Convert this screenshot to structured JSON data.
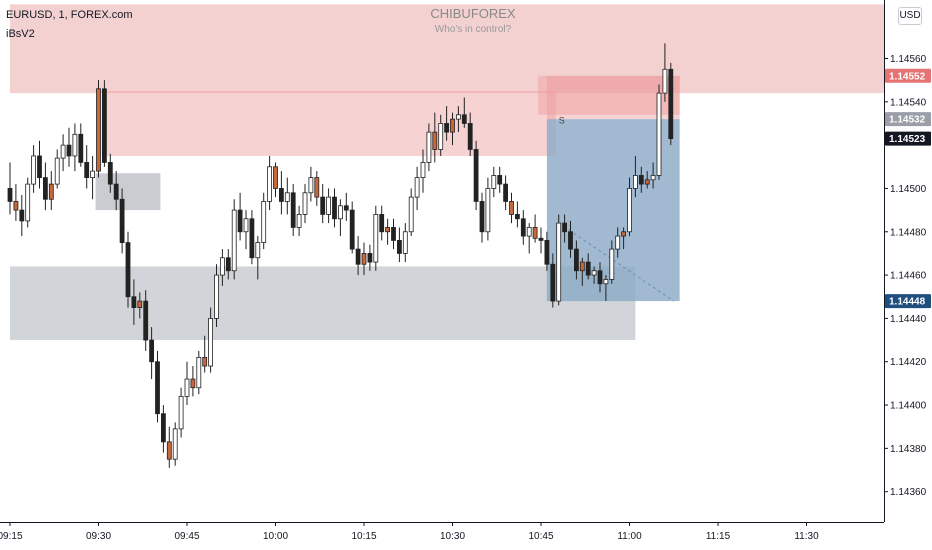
{
  "header": {
    "symbol": "EURUSD, 1, FOREX.com",
    "indicator": "iBsV2"
  },
  "watermark": {
    "title": "CHIBUFOREX",
    "subtitle": "Who's in control?"
  },
  "currency": "USD",
  "colors": {
    "up_body": "#ffffff",
    "down_body": "#222222",
    "accent_orange": "#c8683a",
    "supply_zone": "#f2c9c9",
    "demand_zone": "#c9ccd1",
    "position_blue": "#8aa9c6",
    "badge_red": "#e57373",
    "badge_gray": "#999ea8",
    "badge_black": "#131722",
    "badge_blue": "#1e4f7f"
  },
  "chart_data": {
    "type": "candlestick",
    "ylim": [
      1.14346,
      1.14587
    ],
    "y_ticks": [
      "1.14560",
      "1.14540",
      "1.14500",
      "1.14480",
      "1.14460",
      "1.14440",
      "1.14420",
      "1.14400",
      "1.14380",
      "1.14360"
    ],
    "x_ticks": [
      "09:15",
      "09:30",
      "09:45",
      "10:00",
      "10:15",
      "10:30",
      "10:45",
      "11:00",
      "11:15",
      "11:30"
    ],
    "x_tick_minutes": [
      0,
      15,
      30,
      45,
      60,
      75,
      90,
      105,
      120,
      135
    ],
    "price_badges": [
      {
        "label": "1.14552",
        "value": 1.14552,
        "color": "#e57373"
      },
      {
        "label": "1.14532",
        "value": 1.14532,
        "color": "#999ea8"
      },
      {
        "label": "1.14523",
        "value": 1.14523,
        "color": "#131722"
      },
      {
        "label": "1.14448",
        "value": 1.14448,
        "color": "#1e4f7f"
      }
    ],
    "zones": [
      {
        "kind": "supply",
        "t_start": 0,
        "t_end": 151,
        "low": 1.14544,
        "high": 1.14585,
        "color": "#f2c9c9",
        "opacity": 0.85
      },
      {
        "kind": "supply",
        "t_start": 15.5,
        "t_end": 92.5,
        "low": 1.14515,
        "high": 1.14545,
        "color": "#ee9b9b",
        "opacity": 0.45
      },
      {
        "kind": "supply",
        "t_start": 89.5,
        "t_end": 113.5,
        "low": 1.14534,
        "high": 1.14552,
        "color": "#ee9b9b",
        "opacity": 0.45
      },
      {
        "kind": "demand",
        "t_start": 14.5,
        "t_end": 25.5,
        "low": 1.1449,
        "high": 1.14507,
        "color": "#c9ccd1",
        "opacity": 1
      },
      {
        "kind": "demand",
        "t_start": 0,
        "t_end": 106,
        "low": 1.1443,
        "high": 1.14464,
        "color": "#c9ccd1",
        "opacity": 0.85
      },
      {
        "kind": "position_target",
        "t_start": 91,
        "t_end": 113.5,
        "low": 1.14448,
        "high": 1.14532,
        "color": "#8aa9c6",
        "opacity": 0.8
      },
      {
        "kind": "position_stop",
        "t_start": 91,
        "t_end": 113.5,
        "low": 1.14532,
        "high": 1.14552,
        "color": "#ee9b9b",
        "opacity": 0.45
      }
    ],
    "signal_label": {
      "text": "S",
      "t": 93,
      "value": 1.1453
    },
    "candles": [
      {
        "t": 0,
        "o": 1.145,
        "h": 1.14512,
        "l": 1.14488,
        "c": 1.14494
      },
      {
        "t": 1,
        "o": 1.14494,
        "h": 1.14502,
        "l": 1.14485,
        "c": 1.1449,
        "accent": true
      },
      {
        "t": 2,
        "o": 1.1449,
        "h": 1.14497,
        "l": 1.14478,
        "c": 1.14485
      },
      {
        "t": 3,
        "o": 1.14485,
        "h": 1.14505,
        "l": 1.14482,
        "c": 1.14502
      },
      {
        "t": 4,
        "o": 1.14502,
        "h": 1.1452,
        "l": 1.14498,
        "c": 1.14515
      },
      {
        "t": 5,
        "o": 1.14515,
        "h": 1.14522,
        "l": 1.145,
        "c": 1.14505
      },
      {
        "t": 6,
        "o": 1.14505,
        "h": 1.14512,
        "l": 1.1449,
        "c": 1.14495
      },
      {
        "t": 7,
        "o": 1.14495,
        "h": 1.14508,
        "l": 1.1449,
        "c": 1.14502,
        "accent": true
      },
      {
        "t": 8,
        "o": 1.14502,
        "h": 1.14518,
        "l": 1.145,
        "c": 1.14514
      },
      {
        "t": 9,
        "o": 1.14514,
        "h": 1.14525,
        "l": 1.14508,
        "c": 1.1452
      },
      {
        "t": 10,
        "o": 1.1452,
        "h": 1.14528,
        "l": 1.1451,
        "c": 1.14515
      },
      {
        "t": 11,
        "o": 1.14515,
        "h": 1.1453,
        "l": 1.14508,
        "c": 1.14525
      },
      {
        "t": 12,
        "o": 1.14525,
        "h": 1.1453,
        "l": 1.1451,
        "c": 1.14512
      },
      {
        "t": 13,
        "o": 1.14512,
        "h": 1.1452,
        "l": 1.145,
        "c": 1.14505
      },
      {
        "t": 14,
        "o": 1.14505,
        "h": 1.14515,
        "l": 1.14495,
        "c": 1.14508
      },
      {
        "t": 15,
        "o": 1.14508,
        "h": 1.1455,
        "l": 1.14505,
        "c": 1.14546,
        "accent": true
      },
      {
        "t": 16,
        "o": 1.14546,
        "h": 1.1455,
        "l": 1.1451,
        "c": 1.14512
      },
      {
        "t": 17,
        "o": 1.14512,
        "h": 1.14516,
        "l": 1.14498,
        "c": 1.14502
      },
      {
        "t": 18,
        "o": 1.14502,
        "h": 1.14508,
        "l": 1.1449,
        "c": 1.14495
      },
      {
        "t": 19,
        "o": 1.14495,
        "h": 1.145,
        "l": 1.1447,
        "c": 1.14475
      },
      {
        "t": 20,
        "o": 1.14475,
        "h": 1.1448,
        "l": 1.14445,
        "c": 1.1445
      },
      {
        "t": 21,
        "o": 1.1445,
        "h": 1.14458,
        "l": 1.14437,
        "c": 1.14445
      },
      {
        "t": 22,
        "o": 1.14445,
        "h": 1.14452,
        "l": 1.1444,
        "c": 1.14448,
        "accent": true
      },
      {
        "t": 23,
        "o": 1.14448,
        "h": 1.14453,
        "l": 1.14425,
        "c": 1.1443
      },
      {
        "t": 24,
        "o": 1.1443,
        "h": 1.14436,
        "l": 1.14412,
        "c": 1.1442
      },
      {
        "t": 25,
        "o": 1.1442,
        "h": 1.14425,
        "l": 1.14392,
        "c": 1.14396
      },
      {
        "t": 26,
        "o": 1.14396,
        "h": 1.144,
        "l": 1.14378,
        "c": 1.14383
      },
      {
        "t": 27,
        "o": 1.14383,
        "h": 1.1439,
        "l": 1.14371,
        "c": 1.14375,
        "accent": true
      },
      {
        "t": 28,
        "o": 1.14375,
        "h": 1.14392,
        "l": 1.14372,
        "c": 1.14389
      },
      {
        "t": 29,
        "o": 1.14389,
        "h": 1.14408,
        "l": 1.14385,
        "c": 1.14404
      },
      {
        "t": 30,
        "o": 1.14404,
        "h": 1.1442,
        "l": 1.144,
        "c": 1.14412
      },
      {
        "t": 31,
        "o": 1.14412,
        "h": 1.14418,
        "l": 1.14404,
        "c": 1.14408,
        "accent": true
      },
      {
        "t": 32,
        "o": 1.14408,
        "h": 1.14425,
        "l": 1.14405,
        "c": 1.14422
      },
      {
        "t": 33,
        "o": 1.14422,
        "h": 1.14432,
        "l": 1.14415,
        "c": 1.14418,
        "accent": true
      },
      {
        "t": 34,
        "o": 1.14418,
        "h": 1.14445,
        "l": 1.14415,
        "c": 1.1444
      },
      {
        "t": 35,
        "o": 1.1444,
        "h": 1.14465,
        "l": 1.14436,
        "c": 1.1446
      },
      {
        "t": 36,
        "o": 1.1446,
        "h": 1.14472,
        "l": 1.14455,
        "c": 1.14468
      },
      {
        "t": 37,
        "o": 1.14468,
        "h": 1.14472,
        "l": 1.14458,
        "c": 1.14462
      },
      {
        "t": 38,
        "o": 1.14462,
        "h": 1.14495,
        "l": 1.14458,
        "c": 1.1449
      },
      {
        "t": 39,
        "o": 1.1449,
        "h": 1.14498,
        "l": 1.14476,
        "c": 1.1448
      },
      {
        "t": 40,
        "o": 1.1448,
        "h": 1.1449,
        "l": 1.14472,
        "c": 1.14486
      },
      {
        "t": 41,
        "o": 1.14486,
        "h": 1.1449,
        "l": 1.14465,
        "c": 1.14468
      },
      {
        "t": 42,
        "o": 1.14468,
        "h": 1.14478,
        "l": 1.14458,
        "c": 1.14475
      },
      {
        "t": 43,
        "o": 1.14475,
        "h": 1.14498,
        "l": 1.14472,
        "c": 1.14494
      },
      {
        "t": 44,
        "o": 1.14494,
        "h": 1.14515,
        "l": 1.1449,
        "c": 1.1451
      },
      {
        "t": 45,
        "o": 1.1451,
        "h": 1.14512,
        "l": 1.14496,
        "c": 1.145,
        "accent": true
      },
      {
        "t": 46,
        "o": 1.145,
        "h": 1.14508,
        "l": 1.14488,
        "c": 1.14494
      },
      {
        "t": 47,
        "o": 1.14494,
        "h": 1.14505,
        "l": 1.14488,
        "c": 1.14498
      },
      {
        "t": 48,
        "o": 1.14498,
        "h": 1.14502,
        "l": 1.14478,
        "c": 1.14482
      },
      {
        "t": 49,
        "o": 1.14482,
        "h": 1.14492,
        "l": 1.14478,
        "c": 1.14488
      },
      {
        "t": 50,
        "o": 1.14488,
        "h": 1.14502,
        "l": 1.14484,
        "c": 1.14498
      },
      {
        "t": 51,
        "o": 1.14498,
        "h": 1.1451,
        "l": 1.14494,
        "c": 1.14505
      },
      {
        "t": 52,
        "o": 1.14505,
        "h": 1.14508,
        "l": 1.14492,
        "c": 1.14496,
        "accent": true
      },
      {
        "t": 53,
        "o": 1.14496,
        "h": 1.14502,
        "l": 1.14484,
        "c": 1.14488
      },
      {
        "t": 54,
        "o": 1.14488,
        "h": 1.145,
        "l": 1.14484,
        "c": 1.14496
      },
      {
        "t": 55,
        "o": 1.14496,
        "h": 1.145,
        "l": 1.14482,
        "c": 1.14486
      },
      {
        "t": 56,
        "o": 1.14486,
        "h": 1.14495,
        "l": 1.14478,
        "c": 1.14492
      },
      {
        "t": 57,
        "o": 1.14492,
        "h": 1.14498,
        "l": 1.14485,
        "c": 1.1449
      },
      {
        "t": 58,
        "o": 1.1449,
        "h": 1.14494,
        "l": 1.1447,
        "c": 1.14472
      },
      {
        "t": 59,
        "o": 1.14472,
        "h": 1.14478,
        "l": 1.1446,
        "c": 1.14465
      },
      {
        "t": 60,
        "o": 1.14465,
        "h": 1.14475,
        "l": 1.1446,
        "c": 1.1447,
        "accent": true
      },
      {
        "t": 61,
        "o": 1.1447,
        "h": 1.14474,
        "l": 1.14462,
        "c": 1.14466
      },
      {
        "t": 62,
        "o": 1.14466,
        "h": 1.14492,
        "l": 1.14462,
        "c": 1.14488
      },
      {
        "t": 63,
        "o": 1.14488,
        "h": 1.14492,
        "l": 1.14476,
        "c": 1.1448
      },
      {
        "t": 64,
        "o": 1.1448,
        "h": 1.14486,
        "l": 1.14474,
        "c": 1.14482,
        "accent": true
      },
      {
        "t": 65,
        "o": 1.14482,
        "h": 1.14486,
        "l": 1.14472,
        "c": 1.14476
      },
      {
        "t": 66,
        "o": 1.14476,
        "h": 1.14482,
        "l": 1.14466,
        "c": 1.1447
      },
      {
        "t": 67,
        "o": 1.1447,
        "h": 1.14484,
        "l": 1.14466,
        "c": 1.1448
      },
      {
        "t": 68,
        "o": 1.1448,
        "h": 1.145,
        "l": 1.14478,
        "c": 1.14496
      },
      {
        "t": 69,
        "o": 1.14496,
        "h": 1.1451,
        "l": 1.1449,
        "c": 1.14505
      },
      {
        "t": 70,
        "o": 1.14505,
        "h": 1.14518,
        "l": 1.14498,
        "c": 1.14512
      },
      {
        "t": 71,
        "o": 1.14512,
        "h": 1.1453,
        "l": 1.14508,
        "c": 1.14526
      },
      {
        "t": 72,
        "o": 1.14526,
        "h": 1.14535,
        "l": 1.14512,
        "c": 1.14518,
        "accent": true
      },
      {
        "t": 73,
        "o": 1.14518,
        "h": 1.14534,
        "l": 1.14515,
        "c": 1.1453
      },
      {
        "t": 74,
        "o": 1.1453,
        "h": 1.14538,
        "l": 1.14522,
        "c": 1.14526
      },
      {
        "t": 75,
        "o": 1.14526,
        "h": 1.14535,
        "l": 1.1452,
        "c": 1.14532,
        "accent": true
      },
      {
        "t": 76,
        "o": 1.14532,
        "h": 1.14538,
        "l": 1.14526,
        "c": 1.14534
      },
      {
        "t": 77,
        "o": 1.14534,
        "h": 1.14542,
        "l": 1.14528,
        "c": 1.1453
      },
      {
        "t": 78,
        "o": 1.1453,
        "h": 1.14535,
        "l": 1.14515,
        "c": 1.14518
      },
      {
        "t": 79,
        "o": 1.14518,
        "h": 1.14522,
        "l": 1.1449,
        "c": 1.14494
      },
      {
        "t": 80,
        "o": 1.14494,
        "h": 1.14498,
        "l": 1.14475,
        "c": 1.1448
      },
      {
        "t": 81,
        "o": 1.1448,
        "h": 1.14505,
        "l": 1.14476,
        "c": 1.145
      },
      {
        "t": 82,
        "o": 1.145,
        "h": 1.1451,
        "l": 1.14496,
        "c": 1.14506
      },
      {
        "t": 83,
        "o": 1.14506,
        "h": 1.1451,
        "l": 1.14498,
        "c": 1.14502
      },
      {
        "t": 84,
        "o": 1.14502,
        "h": 1.14506,
        "l": 1.1449,
        "c": 1.14494
      },
      {
        "t": 85,
        "o": 1.14494,
        "h": 1.14498,
        "l": 1.14484,
        "c": 1.14488,
        "accent": true
      },
      {
        "t": 86,
        "o": 1.14488,
        "h": 1.14494,
        "l": 1.14482,
        "c": 1.14486
      },
      {
        "t": 87,
        "o": 1.14486,
        "h": 1.1449,
        "l": 1.14474,
        "c": 1.14478
      },
      {
        "t": 88,
        "o": 1.14478,
        "h": 1.14484,
        "l": 1.1447,
        "c": 1.14482
      },
      {
        "t": 89,
        "o": 1.14482,
        "h": 1.14488,
        "l": 1.14475,
        "c": 1.14477,
        "accent": true
      },
      {
        "t": 90,
        "o": 1.14477,
        "h": 1.14482,
        "l": 1.1447,
        "c": 1.14476
      },
      {
        "t": 91,
        "o": 1.14476,
        "h": 1.1448,
        "l": 1.14462,
        "c": 1.14465
      },
      {
        "t": 92,
        "o": 1.14465,
        "h": 1.1447,
        "l": 1.14445,
        "c": 1.14448
      },
      {
        "t": 93,
        "o": 1.14448,
        "h": 1.14488,
        "l": 1.14446,
        "c": 1.14484
      },
      {
        "t": 94,
        "o": 1.14484,
        "h": 1.14488,
        "l": 1.14475,
        "c": 1.1448
      },
      {
        "t": 95,
        "o": 1.1448,
        "h": 1.14485,
        "l": 1.14468,
        "c": 1.14472
      },
      {
        "t": 96,
        "o": 1.14472,
        "h": 1.14476,
        "l": 1.14458,
        "c": 1.14462
      },
      {
        "t": 97,
        "o": 1.14462,
        "h": 1.14468,
        "l": 1.14455,
        "c": 1.14466,
        "accent": true
      },
      {
        "t": 98,
        "o": 1.14466,
        "h": 1.1447,
        "l": 1.14458,
        "c": 1.1446
      },
      {
        "t": 99,
        "o": 1.1446,
        "h": 1.14464,
        "l": 1.14456,
        "c": 1.14462
      },
      {
        "t": 100,
        "o": 1.14462,
        "h": 1.14466,
        "l": 1.14452,
        "c": 1.14456
      },
      {
        "t": 101,
        "o": 1.14456,
        "h": 1.1446,
        "l": 1.14448,
        "c": 1.14458
      },
      {
        "t": 102,
        "o": 1.14458,
        "h": 1.14476,
        "l": 1.14456,
        "c": 1.14472
      },
      {
        "t": 103,
        "o": 1.14472,
        "h": 1.14482,
        "l": 1.14468,
        "c": 1.14478
      },
      {
        "t": 104,
        "o": 1.14478,
        "h": 1.14482,
        "l": 1.14472,
        "c": 1.1448,
        "accent": true
      },
      {
        "t": 105,
        "o": 1.1448,
        "h": 1.14505,
        "l": 1.14478,
        "c": 1.145
      },
      {
        "t": 106,
        "o": 1.145,
        "h": 1.14515,
        "l": 1.14496,
        "c": 1.14506
      },
      {
        "t": 107,
        "o": 1.14506,
        "h": 1.1451,
        "l": 1.14498,
        "c": 1.14502
      },
      {
        "t": 108,
        "o": 1.14502,
        "h": 1.14508,
        "l": 1.145,
        "c": 1.14504,
        "accent": true
      },
      {
        "t": 109,
        "o": 1.14504,
        "h": 1.14512,
        "l": 1.145,
        "c": 1.14506
      },
      {
        "t": 110,
        "o": 1.14506,
        "h": 1.14548,
        "l": 1.14504,
        "c": 1.14544
      },
      {
        "t": 111,
        "o": 1.14544,
        "h": 1.14567,
        "l": 1.1454,
        "c": 1.14555
      },
      {
        "t": 112,
        "o": 1.14555,
        "h": 1.14558,
        "l": 1.1452,
        "c": 1.14523
      }
    ]
  }
}
